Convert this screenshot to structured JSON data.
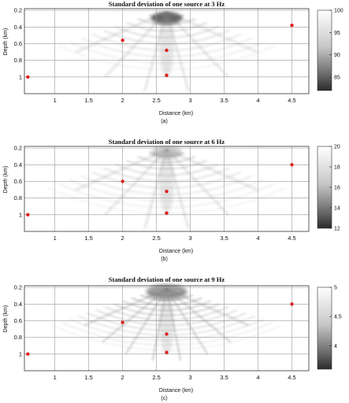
{
  "chart_data": [
    {
      "type": "heatmap",
      "title": "Standard deviation of one source at 3 Hz",
      "xlabel": "Distance (km)",
      "ylabel": "Depth (km)",
      "caption": "(a)",
      "xlim": [
        0.55,
        4.75
      ],
      "ylim": [
        1.2,
        0.18
      ],
      "xticks": [
        "1",
        "1.5",
        "2",
        "2.5",
        "3",
        "3.5",
        "4",
        "4.5"
      ],
      "yticks": [
        "0.2",
        "0.4",
        "0.6",
        "0.8",
        "1"
      ],
      "colorbar": {
        "range": [
          82,
          100
        ],
        "ticks": [
          "100",
          "95",
          "90",
          "85"
        ]
      },
      "markers": [
        {
          "x": 0.6,
          "y": 1.0
        },
        {
          "x": 2.0,
          "y": 0.56
        },
        {
          "x": 2.65,
          "y": 0.68
        },
        {
          "x": 2.65,
          "y": 0.98
        },
        {
          "x": 4.5,
          "y": 0.38
        }
      ],
      "grid": true
    },
    {
      "type": "heatmap",
      "title": "Standard deviation of one source at 6 Hz",
      "xlabel": "Distance (km)",
      "ylabel": "Depth (km)",
      "caption": "(b)",
      "xlim": [
        0.55,
        4.75
      ],
      "ylim": [
        1.2,
        0.18
      ],
      "xticks": [
        "1",
        "1.5",
        "2",
        "2.5",
        "3",
        "3.5",
        "4",
        "4.5"
      ],
      "yticks": [
        "0.2",
        "0.4",
        "0.6",
        "0.8",
        "1"
      ],
      "colorbar": {
        "range": [
          12,
          20
        ],
        "ticks": [
          "20",
          "18",
          "16",
          "14",
          "12"
        ]
      },
      "markers": [
        {
          "x": 0.6,
          "y": 1.0
        },
        {
          "x": 2.0,
          "y": 0.6
        },
        {
          "x": 2.65,
          "y": 0.72
        },
        {
          "x": 2.65,
          "y": 0.98
        },
        {
          "x": 4.5,
          "y": 0.4
        }
      ],
      "grid": true
    },
    {
      "type": "heatmap",
      "title": "Standard deviation of one source at 9 Hz",
      "xlabel": "Distance (km)",
      "ylabel": "Depth (km)",
      "caption": "(c)",
      "xlim": [
        0.55,
        4.75
      ],
      "ylim": [
        1.2,
        0.18
      ],
      "xticks": [
        "1",
        "1.5",
        "2",
        "2.5",
        "3",
        "3.5",
        "4",
        "4.5"
      ],
      "yticks": [
        "0.2",
        "0.4",
        "0.6",
        "0.8",
        "1"
      ],
      "colorbar": {
        "range": [
          3.6,
          5
        ],
        "ticks": [
          "5",
          "4.5",
          "4"
        ]
      },
      "markers": [
        {
          "x": 0.6,
          "y": 1.0
        },
        {
          "x": 2.0,
          "y": 0.62
        },
        {
          "x": 2.65,
          "y": 0.76
        },
        {
          "x": 2.65,
          "y": 0.98
        },
        {
          "x": 4.5,
          "y": 0.4
        }
      ],
      "grid": true
    }
  ],
  "colors": {
    "marker": "#e02020",
    "grid": "#9a9a9a",
    "frame": "#333333"
  }
}
